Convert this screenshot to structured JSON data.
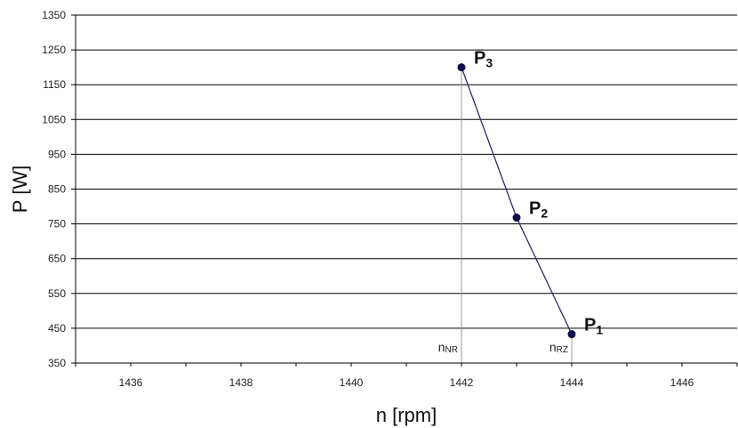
{
  "chart_data": {
    "type": "line",
    "title": "",
    "xlabel": "n [rpm]",
    "ylabel": "P [W]",
    "xlim": [
      1435,
      1447
    ],
    "ylim": [
      350,
      1350
    ],
    "xticks": [
      1436,
      1438,
      1440,
      1442,
      1444,
      1446
    ],
    "yticks": [
      350,
      450,
      550,
      650,
      750,
      850,
      950,
      1050,
      1150,
      1250,
      1350
    ],
    "grid": "horizontal",
    "colors": {
      "line": "#2b2b6e",
      "marker": "#0d0d4d",
      "grid": "#000000",
      "ref": "#9a9a9a"
    },
    "series": [
      {
        "points": [
          {
            "x": 1444,
            "y": 433,
            "label": "P",
            "sub": "1"
          },
          {
            "x": 1443,
            "y": 768,
            "label": "P",
            "sub": "2"
          },
          {
            "x": 1442,
            "y": 1200,
            "label": "P",
            "sub": "3"
          }
        ]
      }
    ],
    "reference_lines": [
      {
        "x": 1442,
        "label": "n",
        "sub": "NR"
      },
      {
        "x": 1444,
        "label": "n",
        "sub": "RZ"
      }
    ]
  }
}
